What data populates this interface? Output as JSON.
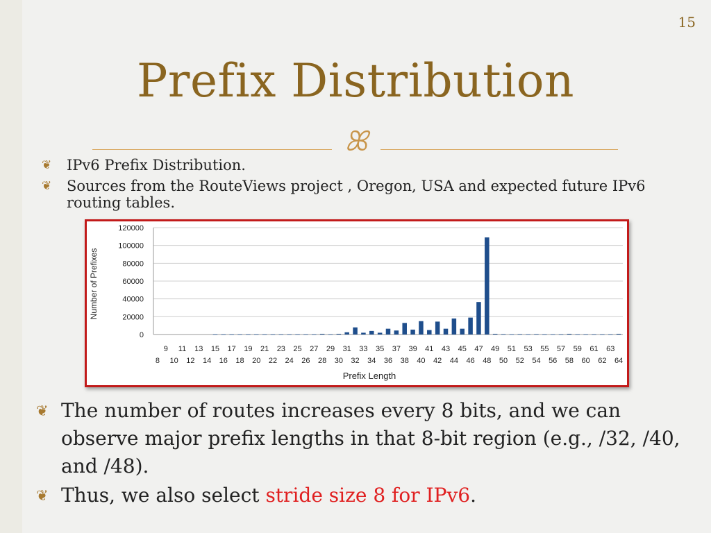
{
  "slide": {
    "page_number": "15",
    "title": "Prefix Distribution",
    "ornament": "ꕤ",
    "bullet_icon": "bullet-icon",
    "top_bullets": [
      "IPv6 Prefix Distribution.",
      "Sources from the RouteViews project , Oregon, USA and expected future IPv6 routing tables."
    ],
    "bottom_bullets": [
      {
        "text": "The number of routes increases every 8 bits, and we can observe major prefix lengths in that 8-bit region (e.g., /32, /40, and /48)."
      },
      {
        "prefix": "Thus, we also select ",
        "highlight": "stride size 8 for IPv6",
        "suffix": "."
      }
    ],
    "colors": {
      "title": "#8a6520",
      "accent": "#c8954a",
      "highlight": "#e02020",
      "frame": "#c21a1a",
      "bar": "#1f4e8c"
    }
  },
  "chart_data": {
    "type": "bar",
    "title": "",
    "xlabel": "Prefix Length",
    "ylabel": "Number of Prefixes",
    "ylim": [
      0,
      120000
    ],
    "yticks": [
      0,
      20000,
      40000,
      60000,
      80000,
      100000,
      120000
    ],
    "grid": true,
    "legend": "none",
    "categories": [
      "8",
      "9",
      "10",
      "11",
      "12",
      "13",
      "14",
      "15",
      "16",
      "17",
      "18",
      "19",
      "20",
      "21",
      "22",
      "23",
      "24",
      "25",
      "26",
      "27",
      "28",
      "29",
      "30",
      "31",
      "32",
      "33",
      "34",
      "35",
      "36",
      "37",
      "38",
      "39",
      "40",
      "41",
      "42",
      "43",
      "44",
      "45",
      "46",
      "47",
      "48",
      "49",
      "50",
      "51",
      "52",
      "53",
      "54",
      "55",
      "56",
      "57",
      "58",
      "59",
      "60",
      "61",
      "62",
      "63",
      "64"
    ],
    "values": [
      0,
      0,
      0,
      0,
      0,
      0,
      0,
      200,
      200,
      200,
      200,
      200,
      200,
      200,
      200,
      200,
      200,
      200,
      200,
      200,
      800,
      200,
      800,
      2500,
      8000,
      2000,
      4000,
      2000,
      6500,
      4500,
      13000,
      5500,
      15000,
      5000,
      14500,
      6500,
      18000,
      6500,
      19000,
      36500,
      109000,
      800,
      500,
      300,
      500,
      300,
      500,
      200,
      300,
      200,
      800,
      200,
      200,
      200,
      200,
      200,
      800
    ]
  }
}
